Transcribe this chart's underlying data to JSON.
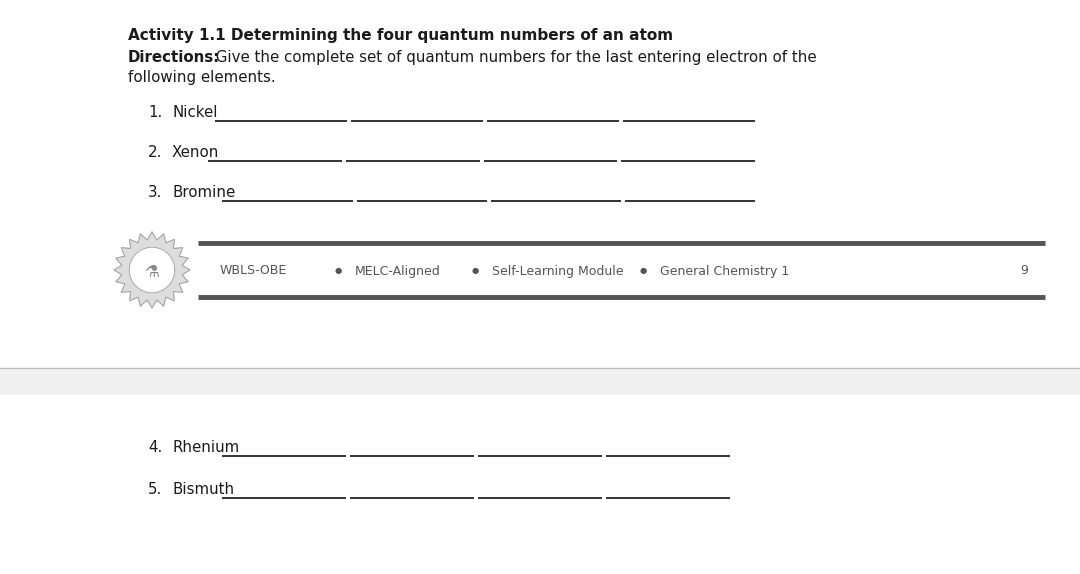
{
  "title_bold": "Activity 1.1 Determining the four quantum numbers of an atom",
  "directions_bold": "Directions:",
  "directions_rest": " Give the complete set of quantum numbers for the last entering electron of the",
  "directions_line2": "following elements.",
  "items_top": [
    {
      "num": "1.",
      "label": "Nickel"
    },
    {
      "num": "2.",
      "label": "Xenon"
    },
    {
      "num": "3.",
      "label": "Bromine"
    }
  ],
  "items_bottom": [
    {
      "num": "4.",
      "label": "Rhenium"
    },
    {
      "num": "5.",
      "label": "Bismuth"
    }
  ],
  "footer_items": [
    "WBLS-OBE",
    "MELC-Aligned",
    "Self-Learning Module",
    "General Chemistry 1"
  ],
  "page_number": "9",
  "bg_color": "#ffffff",
  "page2_bg": "#f0f0f0",
  "text_color": "#1a1a1a",
  "footer_color": "#555555",
  "line_color": "#111111",
  "footer_bar_color": "#888888",
  "separator_color": "#c8c8c8",
  "title_fontsize": 11.0,
  "body_fontsize": 10.8,
  "item_fontsize": 10.8,
  "footer_fontsize": 9.0
}
